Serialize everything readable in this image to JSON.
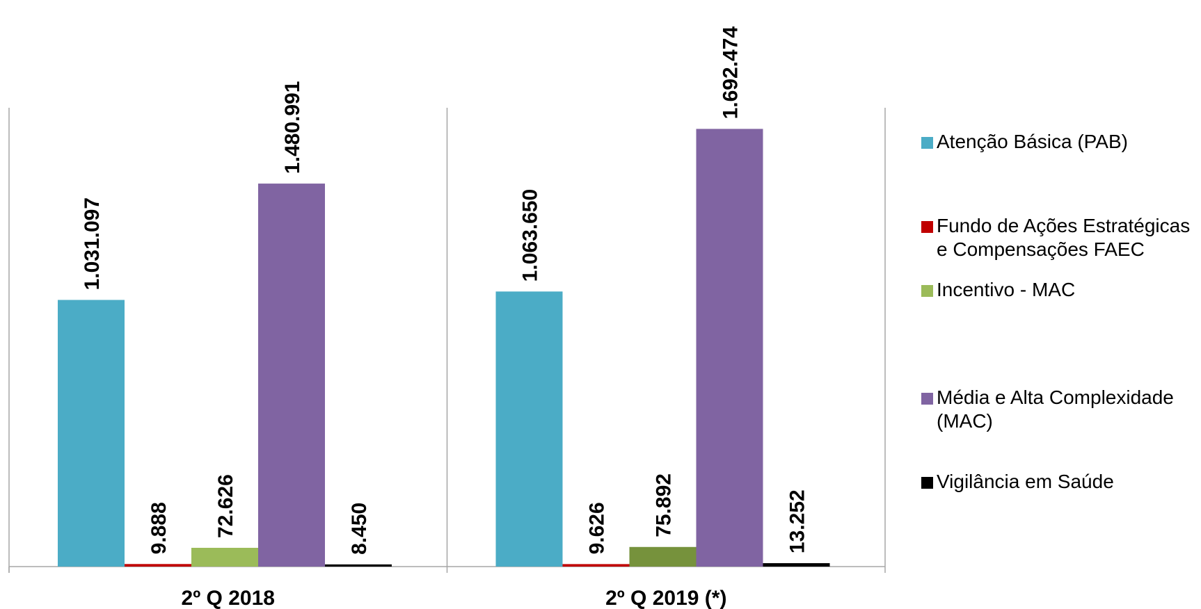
{
  "chart_data": {
    "type": "bar",
    "categories": [
      "2º Q 2018",
      "2º Q 2019 (*)"
    ],
    "series": [
      {
        "name": "Atenção Básica (PAB)",
        "color": "#4BACC6",
        "values": [
          1031097,
          1063650
        ],
        "labels": [
          "1.031.097",
          "1.063.650"
        ]
      },
      {
        "name": "Fundo de Ações Estratégicas e Compensações FAEC",
        "color": "#C00000",
        "values": [
          9888,
          9626
        ],
        "labels": [
          "9.888",
          "9.626"
        ]
      },
      {
        "name": "Incentivo - MAC",
        "color": "#9BBB59",
        "bar_colors": [
          "#9BBB59",
          "#76923C"
        ],
        "values": [
          72626,
          75892
        ],
        "labels": [
          "72.626",
          "75.892"
        ]
      },
      {
        "name": "Média e Alta Complexidade (MAC)",
        "color": "#8064A2",
        "values": [
          1480991,
          1692474
        ],
        "labels": [
          "1.480.991",
          "1.692.474"
        ]
      },
      {
        "name": "Vigilância em Saúde",
        "color": "#000000",
        "values": [
          8450,
          13252
        ],
        "labels": [
          "8.450",
          "13.252"
        ]
      }
    ],
    "ylim": [
      0,
      1900000
    ],
    "grid": false,
    "legend": "right",
    "data_labels": "rotated-vertical"
  }
}
